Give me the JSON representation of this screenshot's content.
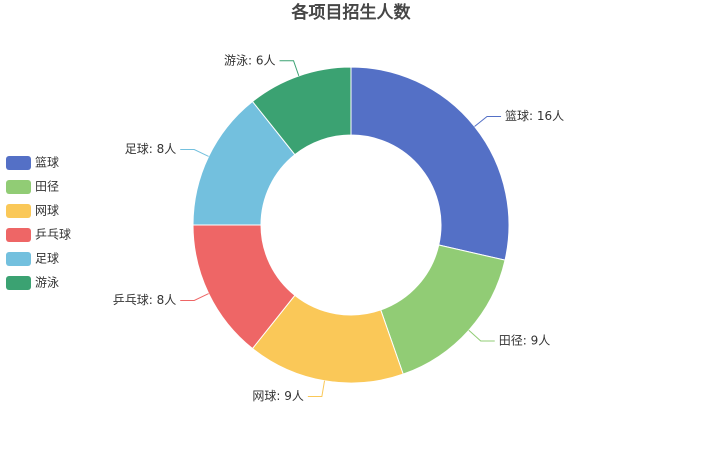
{
  "chart_data": {
    "type": "donut",
    "title": "各项目招生人数",
    "categories": [
      "篮球",
      "田径",
      "网球",
      "乒乓球",
      "足球",
      "游泳"
    ],
    "values": [
      16,
      9,
      9,
      8,
      8,
      6
    ],
    "value_labels": [
      "篮球: 16人",
      "田径: 9人",
      "网球: 9人",
      "乒乓球: 8人",
      "足球: 8人",
      "游泳: 6人"
    ],
    "colors": [
      "#5470c6",
      "#91cc75",
      "#fac858",
      "#ee6666",
      "#73c0de",
      "#3ba272"
    ],
    "legend": "left"
  }
}
